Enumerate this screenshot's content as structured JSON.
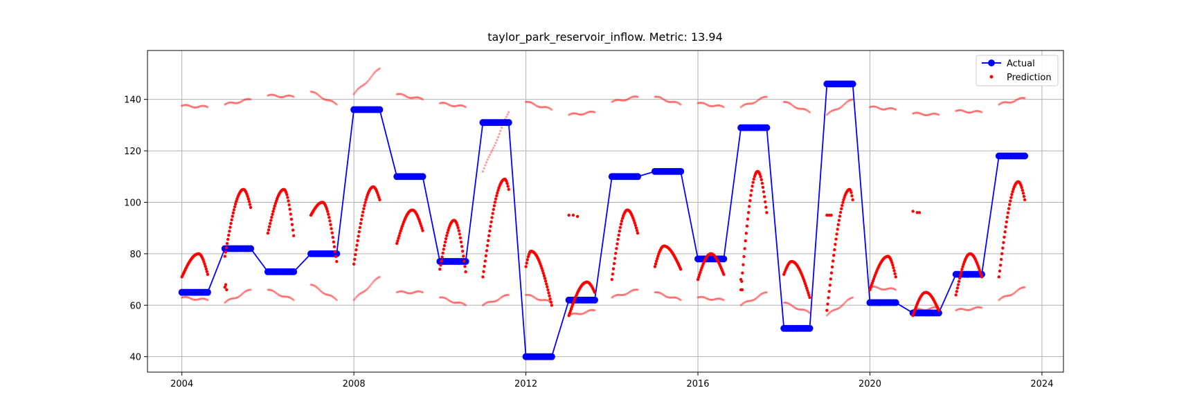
{
  "chart_data": {
    "type": "scatter",
    "title": "taylor_park_reservoir_inflow. Metric: 13.94",
    "xlabel": "",
    "ylabel": "",
    "xlim": [
      2003.2,
      2024.5
    ],
    "ylim": [
      34,
      159
    ],
    "x_ticks": [
      2004,
      2008,
      2012,
      2016,
      2020,
      2024
    ],
    "y_ticks": [
      40,
      60,
      80,
      100,
      120,
      140
    ],
    "grid": true,
    "legend_position": "top-right",
    "colors": {
      "actual": "#0000ff",
      "prediction": "#ff0000",
      "grid": "#b0b0b0"
    },
    "actual": {
      "name": "Actual",
      "segments": [
        {
          "x0": 2004.0,
          "x1": 2004.6,
          "y": 65
        },
        {
          "x0": 2005.0,
          "x1": 2005.6,
          "y": 82
        },
        {
          "x0": 2006.0,
          "x1": 2006.6,
          "y": 73
        },
        {
          "x0": 2007.0,
          "x1": 2007.6,
          "y": 80
        },
        {
          "x0": 2008.0,
          "x1": 2008.6,
          "y": 136
        },
        {
          "x0": 2009.0,
          "x1": 2009.6,
          "y": 110
        },
        {
          "x0": 2010.0,
          "x1": 2010.6,
          "y": 77
        },
        {
          "x0": 2011.0,
          "x1": 2011.6,
          "y": 131
        },
        {
          "x0": 2012.0,
          "x1": 2012.6,
          "y": 40
        },
        {
          "x0": 2013.0,
          "x1": 2013.6,
          "y": 62
        },
        {
          "x0": 2014.0,
          "x1": 2014.6,
          "y": 110
        },
        {
          "x0": 2015.0,
          "x1": 2015.6,
          "y": 112
        },
        {
          "x0": 2016.0,
          "x1": 2016.6,
          "y": 78
        },
        {
          "x0": 2017.0,
          "x1": 2017.6,
          "y": 129
        },
        {
          "x0": 2018.0,
          "x1": 2018.6,
          "y": 51
        },
        {
          "x0": 2019.0,
          "x1": 2019.6,
          "y": 146
        },
        {
          "x0": 2020.0,
          "x1": 2020.6,
          "y": 61
        },
        {
          "x0": 2021.0,
          "x1": 2021.6,
          "y": 57
        },
        {
          "x0": 2022.0,
          "x1": 2022.6,
          "y": 72
        },
        {
          "x0": 2023.0,
          "x1": 2023.6,
          "y": 118
        }
      ]
    },
    "prediction": {
      "name": "Prediction",
      "median_curves": [
        {
          "x0": 2004.0,
          "x1": 2004.6,
          "y_start": 71,
          "y_peak": 80,
          "y_end": 72,
          "peak_at": 0.65
        },
        {
          "x0": 2005.0,
          "x1": 2005.6,
          "y_start": 79,
          "y_peak": 105,
          "y_end": 98,
          "peak_at": 0.72
        },
        {
          "x0": 2006.0,
          "x1": 2006.6,
          "y_start": 88,
          "y_peak": 105,
          "y_end": 87,
          "peak_at": 0.62
        },
        {
          "x0": 2007.0,
          "x1": 2007.6,
          "y_start": 95,
          "y_peak": 100,
          "y_end": 77,
          "peak_at": 0.45
        },
        {
          "x0": 2008.0,
          "x1": 2008.6,
          "y_start": 76,
          "y_peak": 106,
          "y_end": 101,
          "peak_at": 0.75
        },
        {
          "x0": 2009.0,
          "x1": 2009.6,
          "y_start": 84,
          "y_peak": 97,
          "y_end": 89,
          "peak_at": 0.6
        },
        {
          "x0": 2010.0,
          "x1": 2010.6,
          "y_start": 74,
          "y_peak": 93,
          "y_end": 73,
          "peak_at": 0.55
        },
        {
          "x0": 2011.0,
          "x1": 2011.6,
          "y_start": 71,
          "y_peak": 109,
          "y_end": 105,
          "peak_at": 0.85
        },
        {
          "x0": 2012.0,
          "x1": 2012.6,
          "y_start": 75,
          "y_peak": 81,
          "y_end": 60,
          "peak_at": 0.2
        },
        {
          "x0": 2013.0,
          "x1": 2013.6,
          "y_start": 56,
          "y_peak": 69,
          "y_end": 65,
          "peak_at": 0.7
        },
        {
          "x0": 2014.0,
          "x1": 2014.6,
          "y_start": 70,
          "y_peak": 97,
          "y_end": 88,
          "peak_at": 0.6
        },
        {
          "x0": 2015.0,
          "x1": 2015.6,
          "y_start": 75,
          "y_peak": 83,
          "y_end": 74,
          "peak_at": 0.35
        },
        {
          "x0": 2016.0,
          "x1": 2016.6,
          "y_start": 70,
          "y_peak": 80,
          "y_end": 72,
          "peak_at": 0.5
        },
        {
          "x0": 2017.0,
          "x1": 2017.6,
          "y_start": 66,
          "y_peak": 112,
          "y_end": 96,
          "peak_at": 0.65
        },
        {
          "x0": 2018.0,
          "x1": 2018.6,
          "y_start": 72,
          "y_peak": 77,
          "y_end": 63,
          "peak_at": 0.3
        },
        {
          "x0": 2019.0,
          "x1": 2019.6,
          "y_start": 58,
          "y_peak": 105,
          "y_end": 101,
          "peak_at": 0.88
        },
        {
          "x0": 2020.0,
          "x1": 2020.6,
          "y_start": 66,
          "y_peak": 79,
          "y_end": 71,
          "peak_at": 0.7
        },
        {
          "x0": 2021.0,
          "x1": 2021.6,
          "y_start": 56,
          "y_peak": 65,
          "y_end": 58,
          "peak_at": 0.5
        },
        {
          "x0": 2022.0,
          "x1": 2022.6,
          "y_start": 64,
          "y_peak": 80,
          "y_end": 71,
          "peak_at": 0.55
        },
        {
          "x0": 2023.0,
          "x1": 2023.6,
          "y_start": 71,
          "y_peak": 108,
          "y_end": 101,
          "peak_at": 0.75
        }
      ],
      "upper_bands": [
        {
          "x0": 2004.0,
          "x1": 2004.6,
          "y0": 137.5,
          "y1": 137
        },
        {
          "x0": 2005.0,
          "x1": 2005.6,
          "y0": 138,
          "y1": 140
        },
        {
          "x0": 2006.0,
          "x1": 2006.6,
          "y0": 141.5,
          "y1": 141
        },
        {
          "x0": 2007.0,
          "x1": 2007.6,
          "y0": 143,
          "y1": 138
        },
        {
          "x0": 2008.0,
          "x1": 2008.6,
          "y0": 142,
          "y1": 152
        },
        {
          "x0": 2009.0,
          "x1": 2009.6,
          "y0": 142,
          "y1": 140
        },
        {
          "x0": 2010.0,
          "x1": 2010.6,
          "y0": 138.5,
          "y1": 137
        },
        {
          "x0": 2011.0,
          "x1": 2011.6,
          "y0": 112,
          "y1": 135
        },
        {
          "x0": 2012.0,
          "x1": 2012.6,
          "y0": 139,
          "y1": 136
        },
        {
          "x0": 2013.0,
          "x1": 2013.6,
          "y0": 134,
          "y1": 135
        },
        {
          "x0": 2014.0,
          "x1": 2014.6,
          "y0": 139,
          "y1": 141
        },
        {
          "x0": 2015.0,
          "x1": 2015.6,
          "y0": 141,
          "y1": 138
        },
        {
          "x0": 2016.0,
          "x1": 2016.6,
          "y0": 138.5,
          "y1": 137
        },
        {
          "x0": 2017.0,
          "x1": 2017.6,
          "y0": 137,
          "y1": 141
        },
        {
          "x0": 2018.0,
          "x1": 2018.6,
          "y0": 139,
          "y1": 135
        },
        {
          "x0": 2019.0,
          "x1": 2019.6,
          "y0": 134,
          "y1": 140
        },
        {
          "x0": 2020.0,
          "x1": 2020.6,
          "y0": 137,
          "y1": 136
        },
        {
          "x0": 2021.0,
          "x1": 2021.6,
          "y0": 134.5,
          "y1": 134
        },
        {
          "x0": 2022.0,
          "x1": 2022.6,
          "y0": 135.5,
          "y1": 135
        },
        {
          "x0": 2023.0,
          "x1": 2023.6,
          "y0": 138,
          "y1": 140.5
        }
      ],
      "lower_bands": [
        {
          "x0": 2004.0,
          "x1": 2004.6,
          "y0": 63,
          "y1": 62
        },
        {
          "x0": 2005.0,
          "x1": 2005.6,
          "y0": 61,
          "y1": 66
        },
        {
          "x0": 2006.0,
          "x1": 2006.6,
          "y0": 66,
          "y1": 62
        },
        {
          "x0": 2007.0,
          "x1": 2007.6,
          "y0": 68,
          "y1": 62
        },
        {
          "x0": 2008.0,
          "x1": 2008.6,
          "y0": 62,
          "y1": 71
        },
        {
          "x0": 2009.0,
          "x1": 2009.6,
          "y0": 65,
          "y1": 65
        },
        {
          "x0": 2010.0,
          "x1": 2010.6,
          "y0": 63,
          "y1": 60
        },
        {
          "x0": 2011.0,
          "x1": 2011.6,
          "y0": 60,
          "y1": 64
        },
        {
          "x0": 2012.0,
          "x1": 2012.6,
          "y0": 64,
          "y1": 61
        },
        {
          "x0": 2013.0,
          "x1": 2013.6,
          "y0": 56,
          "y1": 58
        },
        {
          "x0": 2014.0,
          "x1": 2014.6,
          "y0": 63,
          "y1": 66
        },
        {
          "x0": 2015.0,
          "x1": 2015.6,
          "y0": 65,
          "y1": 62
        },
        {
          "x0": 2016.0,
          "x1": 2016.6,
          "y0": 63,
          "y1": 62
        },
        {
          "x0": 2017.0,
          "x1": 2017.6,
          "y0": 60,
          "y1": 65
        },
        {
          "x0": 2018.0,
          "x1": 2018.6,
          "y0": 61,
          "y1": 57
        },
        {
          "x0": 2019.0,
          "x1": 2019.6,
          "y0": 56,
          "y1": 63
        },
        {
          "x0": 2020.0,
          "x1": 2020.6,
          "y0": 67,
          "y1": 66
        },
        {
          "x0": 2021.0,
          "x1": 2021.6,
          "y0": 58,
          "y1": 59
        },
        {
          "x0": 2022.0,
          "x1": 2022.6,
          "y0": 58,
          "y1": 59
        },
        {
          "x0": 2023.0,
          "x1": 2023.6,
          "y0": 62,
          "y1": 67
        }
      ],
      "extra_points": [
        {
          "x": 2005.0,
          "y": 67
        },
        {
          "x": 2005.02,
          "y": 68
        },
        {
          "x": 2005.04,
          "y": 66
        },
        {
          "x": 2013.0,
          "y": 95
        },
        {
          "x": 2013.1,
          "y": 95
        },
        {
          "x": 2013.2,
          "y": 94.5
        },
        {
          "x": 2017.0,
          "y": 70
        },
        {
          "x": 2017.03,
          "y": 66
        },
        {
          "x": 2019.0,
          "y": 95
        },
        {
          "x": 2019.05,
          "y": 95
        },
        {
          "x": 2019.1,
          "y": 95
        },
        {
          "x": 2021.0,
          "y": 96.5
        },
        {
          "x": 2021.1,
          "y": 96
        },
        {
          "x": 2021.15,
          "y": 96
        }
      ]
    }
  }
}
